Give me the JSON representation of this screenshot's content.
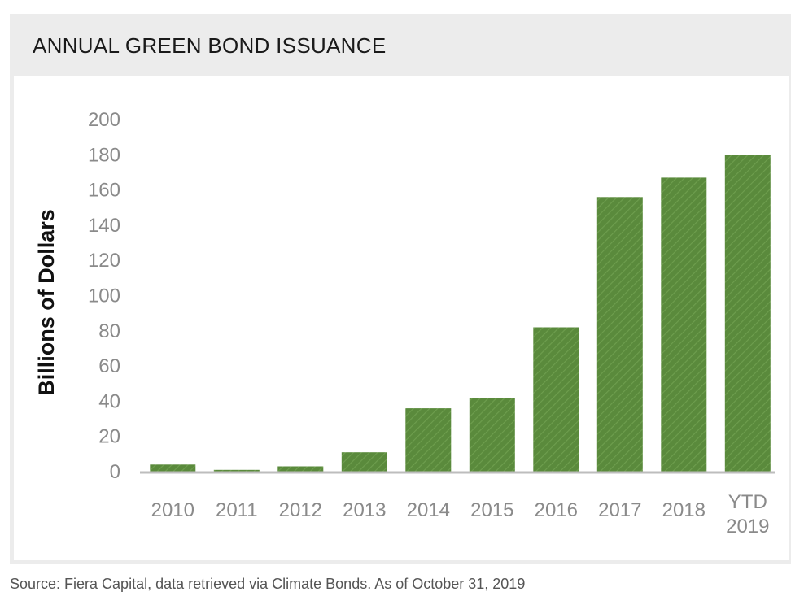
{
  "header": {
    "title": "ANNUAL GREEN BOND ISSUANCE"
  },
  "footer": {
    "source": "Source: Fiera Capital, data retrieved via Climate Bonds. As of October 31, 2019"
  },
  "colors": {
    "bar": "#5a8a3c",
    "bar_hatch": "#6e9e4e",
    "axis": "#bdbdbd",
    "tick_label": "#8a8a8a",
    "ylabel": "#111111"
  },
  "chart_data": {
    "type": "bar",
    "categories": [
      "2010",
      "2011",
      "2012",
      "2013",
      "2014",
      "2015",
      "2016",
      "2017",
      "2018",
      "YTD 2019"
    ],
    "values": [
      4,
      1,
      3,
      11,
      36,
      42,
      82,
      156,
      167,
      180
    ],
    "title": "ANNUAL GREEN BOND ISSUANCE",
    "xlabel": "",
    "ylabel": "Billions of Dollars",
    "ylim": [
      0,
      200
    ],
    "yticks": [
      0,
      20,
      40,
      60,
      80,
      100,
      120,
      140,
      160,
      180,
      200
    ],
    "grid": false,
    "legend": "none"
  }
}
